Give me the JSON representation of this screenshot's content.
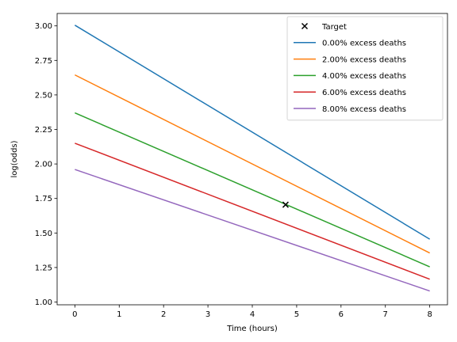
{
  "chart_data": {
    "type": "line",
    "title": "",
    "xlabel": "Time (hours)",
    "ylabel": "log(odds)",
    "xlim": [
      -0.4,
      8.4
    ],
    "ylim": [
      0.98,
      3.09
    ],
    "x_ticks": [
      0,
      1,
      2,
      3,
      4,
      5,
      6,
      7,
      8
    ],
    "x_tick_labels": [
      "0",
      "1",
      "2",
      "3",
      "4",
      "5",
      "6",
      "7",
      "8"
    ],
    "y_ticks": [
      1.0,
      1.25,
      1.5,
      1.75,
      2.0,
      2.25,
      2.5,
      2.75,
      3.0
    ],
    "y_tick_labels": [
      "1.00",
      "1.25",
      "1.50",
      "1.75",
      "2.00",
      "2.25",
      "2.50",
      "2.75",
      "3.00"
    ],
    "grid": false,
    "legend_position": "top-right",
    "target": {
      "name": "Target",
      "x": 4.75,
      "y": 1.705,
      "marker": "x",
      "color": "#000000"
    },
    "series": [
      {
        "name": "0.00% excess deaths",
        "color": "#1f77b4",
        "x": [
          0,
          8
        ],
        "y": [
          3.005,
          1.455
        ]
      },
      {
        "name": "2.00% excess deaths",
        "color": "#ff7f0e",
        "x": [
          0,
          8
        ],
        "y": [
          2.645,
          1.355
        ]
      },
      {
        "name": "4.00% excess deaths",
        "color": "#2ca02c",
        "x": [
          0,
          8
        ],
        "y": [
          2.37,
          1.255
        ]
      },
      {
        "name": "6.00% excess deaths",
        "color": "#d62728",
        "x": [
          0,
          8
        ],
        "y": [
          2.15,
          1.165
        ]
      },
      {
        "name": "8.00% excess deaths",
        "color": "#9467bd",
        "x": [
          0,
          8
        ],
        "y": [
          1.96,
          1.08
        ]
      }
    ]
  }
}
